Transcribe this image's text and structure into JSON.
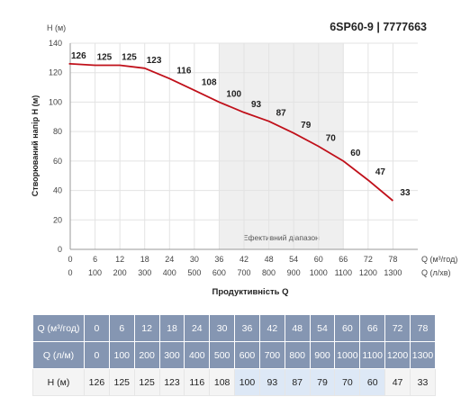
{
  "model": "6SP60-9 | 7777663",
  "chart_data": {
    "type": "line",
    "ylabel": "Створюваний напір H (м)",
    "ylabel_top": "H (м)",
    "xlabel": "Продуктивність Q",
    "ylim": [
      0,
      140
    ],
    "yticks": [
      0,
      20,
      40,
      60,
      80,
      100,
      120,
      140
    ],
    "x_axes": [
      {
        "unit": "Q (м³/год)",
        "ticks": [
          0,
          6,
          12,
          18,
          24,
          30,
          36,
          42,
          48,
          54,
          60,
          66,
          72,
          78
        ]
      },
      {
        "unit": "Q (л/хв)",
        "ticks": [
          0,
          100,
          200,
          300,
          400,
          500,
          600,
          700,
          800,
          900,
          1000,
          1100,
          1200,
          1300
        ]
      }
    ],
    "efficiency_range": {
      "label": "Ефективний діапазон",
      "x_start": 36,
      "x_end": 66
    },
    "series": [
      {
        "color": "#c0101a",
        "x": [
          0,
          6,
          12,
          18,
          24,
          30,
          36,
          42,
          48,
          54,
          60,
          66,
          72,
          78
        ],
        "y": [
          126,
          125,
          125,
          123,
          116,
          108,
          100,
          93,
          87,
          79,
          70,
          60,
          47,
          33
        ],
        "x_start": -0.3,
        "y_start": 126
      }
    ],
    "grid": true
  },
  "table": {
    "rows": [
      {
        "label": "Q (м³/год)",
        "values": [
          "0",
          "6",
          "12",
          "18",
          "24",
          "30",
          "36",
          "42",
          "48",
          "54",
          "60",
          "66",
          "72",
          "78"
        ]
      },
      {
        "label": "Q (л/м)",
        "values": [
          "0",
          "100",
          "200",
          "300",
          "400",
          "500",
          "600",
          "700",
          "800",
          "900",
          "1000",
          "1100",
          "1200",
          "1300"
        ]
      },
      {
        "label": "Н (м)",
        "values": [
          "126",
          "125",
          "125",
          "123",
          "116",
          "108",
          "100",
          "93",
          "87",
          "79",
          "70",
          "60",
          "47",
          "33"
        ]
      }
    ],
    "highlight_columns": [
      6,
      7,
      8,
      9,
      10,
      11
    ]
  },
  "colors": {
    "curve": "#c0101a",
    "band": "#efefef",
    "header": "#8596b2",
    "highlight": "#dde8f6"
  }
}
